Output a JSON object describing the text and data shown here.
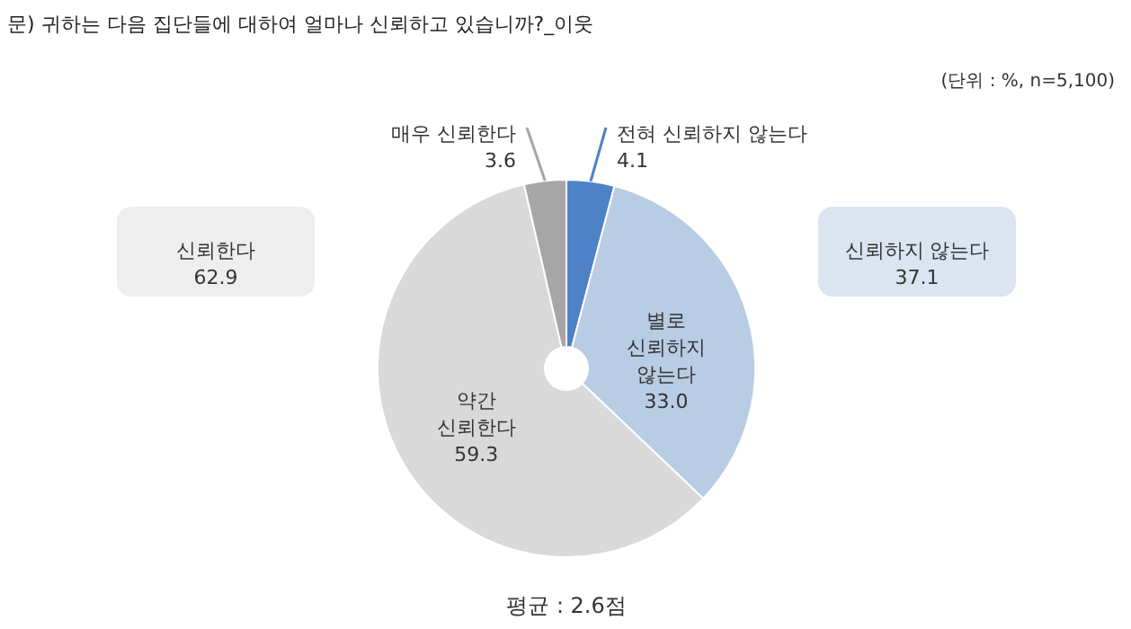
{
  "chart_data": {
    "type": "pie",
    "title": "문) 귀하는 다음 집단들에 대하여 얼마나 신뢰하고 있습니까?_이웃",
    "categories": [
      "전혀 신뢰하지 않는다",
      "별로 신뢰하지 않는다",
      "약간 신뢰한다",
      "매우 신뢰한다"
    ],
    "values": [
      4.1,
      33.0,
      59.3,
      3.6
    ],
    "colors": [
      "#4f81c7",
      "#b8cce4",
      "#d9d9d9",
      "#a6a6a6"
    ],
    "value_labels": [
      "4.1",
      "33.0",
      "59.3",
      "3.6"
    ],
    "annotations": [
      "(단위 : %, n=5,100)",
      "평균 : 2.6점",
      "신뢰한다\n62.9",
      "신뢰하지 않는다\n37.1"
    ]
  }
}
